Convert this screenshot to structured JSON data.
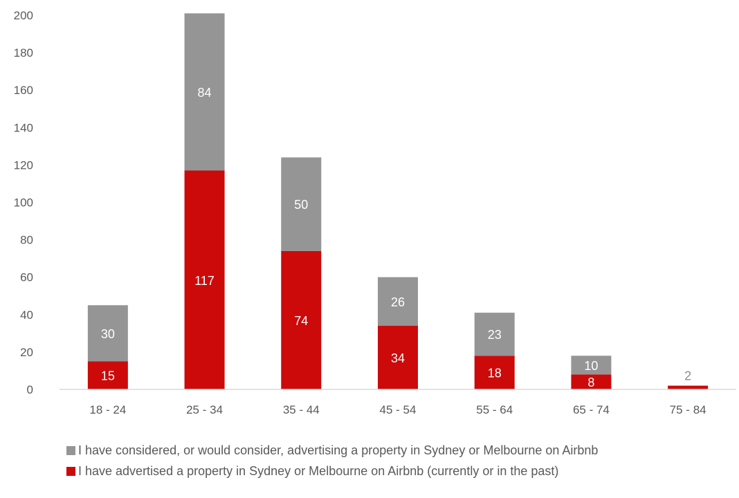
{
  "chart_data": {
    "type": "bar",
    "stacked": true,
    "categories": [
      "18 - 24",
      "25 - 34",
      "35 - 44",
      "45 - 54",
      "55 - 64",
      "65 - 74",
      "75 - 84"
    ],
    "series": [
      {
        "name": "I have advertised a property in Sydney or Melbourne on Airbnb (currently or in the past)",
        "color": "#cc0a0a",
        "values": [
          15,
          117,
          74,
          34,
          18,
          8,
          2
        ]
      },
      {
        "name": "I have considered, or would consider, advertising a property in Sydney or Melbourne on Airbnb",
        "color": "#959595",
        "values": [
          30,
          84,
          50,
          26,
          23,
          10,
          0
        ]
      }
    ],
    "data_labels": {
      "advertised": [
        "15",
        "117",
        "74",
        "34",
        "18",
        "8",
        ""
      ],
      "considered": [
        "30",
        "84",
        "50",
        "26",
        "23",
        "10",
        "2"
      ]
    },
    "y_ticks": [
      "0",
      "20",
      "40",
      "60",
      "80",
      "100",
      "120",
      "140",
      "160",
      "180",
      "200"
    ],
    "ylim": [
      0,
      200
    ],
    "grid": false,
    "legend_position": "bottom"
  }
}
